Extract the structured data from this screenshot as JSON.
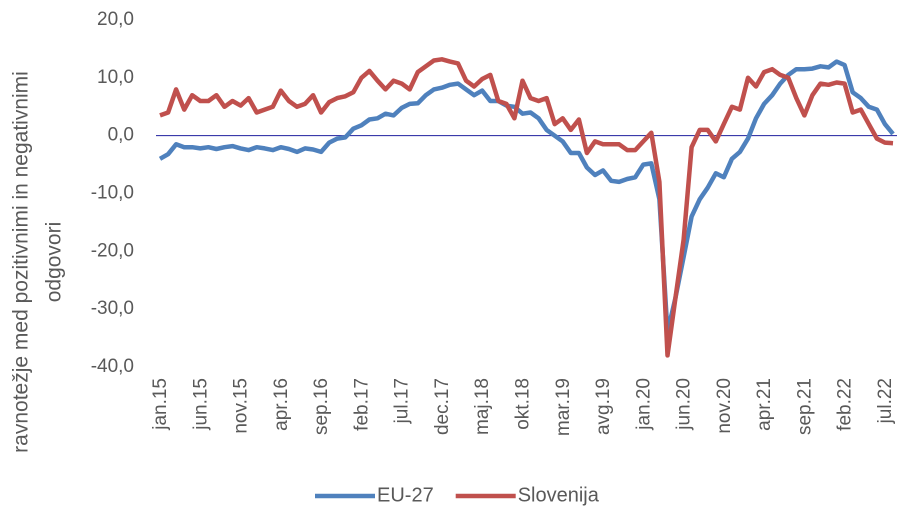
{
  "chart_data": {
    "type": "line",
    "y_label_lines": [
      "ravnotežje med pozitivnimi in negativnimi",
      "odgovori"
    ],
    "categories": [
      "jan.15",
      null,
      null,
      null,
      null,
      "jun.15",
      null,
      null,
      null,
      null,
      "nov.15",
      null,
      null,
      null,
      null,
      "apr.16",
      null,
      null,
      null,
      null,
      "sep.16",
      null,
      null,
      null,
      null,
      "feb.17",
      null,
      null,
      null,
      null,
      "jul.17",
      null,
      null,
      null,
      null,
      "dec.17",
      null,
      null,
      null,
      null,
      "maj.18",
      null,
      null,
      null,
      null,
      "okt.18",
      null,
      null,
      null,
      null,
      "mar.19",
      null,
      null,
      null,
      null,
      "avg.19",
      null,
      null,
      null,
      null,
      "jan.20",
      null,
      null,
      null,
      null,
      "jun.20",
      null,
      null,
      null,
      null,
      "nov.20",
      null,
      null,
      null,
      null,
      "apr.21",
      null,
      null,
      null,
      null,
      "sep.21",
      null,
      null,
      null,
      null,
      "feb.22",
      null,
      null,
      null,
      null,
      "jul.22",
      null
    ],
    "series": [
      {
        "name": "EU-27",
        "color": "#4f81bd",
        "values": [
          -4,
          -3.2,
          -1.5,
          -2,
          -2,
          -2.2,
          -2,
          -2.3,
          -2,
          -1.8,
          -2.2,
          -2.5,
          -2,
          -2.2,
          -2.5,
          -2,
          -2.3,
          -2.8,
          -2.2,
          -2.4,
          -2.8,
          -1.2,
          -0.5,
          -0.3,
          1.2,
          1.8,
          2.8,
          3,
          3.8,
          3.5,
          4.8,
          5.5,
          5.6,
          7,
          8,
          8.3,
          8.8,
          9,
          8,
          7,
          7.8,
          6,
          6,
          5.2,
          5,
          3.8,
          4,
          3,
          1,
          0,
          -1,
          -3,
          -3,
          -5.5,
          -6.8,
          -6,
          -7.8,
          -8,
          -7.5,
          -7.2,
          -5,
          -4.8,
          -11,
          -34,
          -28,
          -21,
          -14,
          -11,
          -9,
          -6.5,
          -7.2,
          -4,
          -2.8,
          -0.5,
          3,
          5.5,
          7,
          9,
          10.5,
          11.5,
          11.5,
          11.6,
          12,
          11.8,
          12.8,
          12.2,
          7.5,
          6.5,
          5,
          4.5,
          2,
          0.3
        ]
      },
      {
        "name": "Slovenija",
        "color": "#c0504d",
        "values": [
          3.5,
          4,
          8,
          4.5,
          7,
          6,
          6,
          7,
          5,
          6,
          5.2,
          6.5,
          4,
          4.5,
          5,
          7.8,
          6,
          5,
          5.5,
          7,
          4,
          5.8,
          6.5,
          6.8,
          7.5,
          10,
          11.2,
          9.5,
          8,
          9.5,
          9,
          8,
          11,
          12,
          13,
          13.2,
          12.8,
          12.5,
          9.5,
          8.5,
          9.8,
          10.5,
          6,
          5.5,
          3,
          9.5,
          6.5,
          6,
          6.5,
          2,
          3,
          1,
          2.8,
          -3,
          -1,
          -1.5,
          -1.5,
          -1.5,
          -2.5,
          -2.5,
          -1,
          0.5,
          -8,
          -38,
          -28,
          -18,
          -2,
          1,
          1,
          -1,
          2,
          5,
          4.5,
          10,
          8.5,
          11,
          11.5,
          10.5,
          10,
          6.5,
          3.5,
          7,
          9,
          8.8,
          9.2,
          9,
          4,
          4.5,
          2,
          -0.5,
          -1.2,
          -1.3
        ]
      }
    ],
    "ylim": [
      -40,
      20
    ],
    "yticks": [
      {
        "value": -40,
        "label": "-40,0"
      },
      {
        "value": -30,
        "label": "-30,0"
      },
      {
        "value": -20,
        "label": "-20,0"
      },
      {
        "value": -10,
        "label": "-10,0"
      },
      {
        "value": 0,
        "label": "0,0"
      },
      {
        "value": 10,
        "label": "10,0"
      },
      {
        "value": 20,
        "label": "20,0"
      }
    ],
    "grid": false,
    "legend": "bottom"
  }
}
